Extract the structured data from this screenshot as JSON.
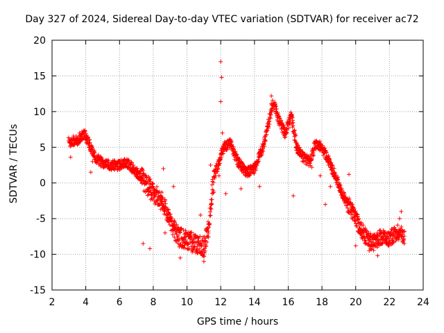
{
  "chart_data": {
    "type": "scatter",
    "title": "Day 327 of 2024, Sidereal Day-to-day VTEC variation (SDTVAR) for receiver ac72",
    "xlabel": "GPS time / hours",
    "ylabel": "SDTVAR / TECUs",
    "xlim": [
      2,
      24
    ],
    "ylim": [
      -15,
      20
    ],
    "xticks": [
      2,
      4,
      6,
      8,
      10,
      12,
      14,
      16,
      18,
      20,
      22,
      24
    ],
    "yticks": [
      -15,
      -10,
      -5,
      0,
      5,
      10,
      15,
      20
    ],
    "grid": true,
    "marker": "+",
    "color": "#ff0000",
    "series": [
      {
        "name": "SDTVAR",
        "trend": [
          [
            3.0,
            5.8
          ],
          [
            3.5,
            6.0
          ],
          [
            3.9,
            7.0
          ],
          [
            4.2,
            5.5
          ],
          [
            4.6,
            3.5
          ],
          [
            5.0,
            2.8
          ],
          [
            5.5,
            2.5
          ],
          [
            6.0,
            2.5
          ],
          [
            6.5,
            2.8
          ],
          [
            7.0,
            1.5
          ],
          [
            7.4,
            0.5
          ],
          [
            7.8,
            -0.8
          ],
          [
            8.2,
            -1.8
          ],
          [
            8.6,
            -3.0
          ],
          [
            9.0,
            -5.5
          ],
          [
            9.5,
            -7.5
          ],
          [
            10.0,
            -8.0
          ],
          [
            10.5,
            -8.5
          ],
          [
            11.0,
            -9.0
          ],
          [
            11.3,
            -6.0
          ],
          [
            11.6,
            1.0
          ],
          [
            11.9,
            3.0
          ],
          [
            12.2,
            5.0
          ],
          [
            12.6,
            5.5
          ],
          [
            13.0,
            3.0
          ],
          [
            13.5,
            1.5
          ],
          [
            14.0,
            2.0
          ],
          [
            14.5,
            5.0
          ],
          [
            14.8,
            8.0
          ],
          [
            15.1,
            11.5
          ],
          [
            15.4,
            9.0
          ],
          [
            15.8,
            7.0
          ],
          [
            16.2,
            9.5
          ],
          [
            16.5,
            5.0
          ],
          [
            16.9,
            3.5
          ],
          [
            17.3,
            3.0
          ],
          [
            17.6,
            5.5
          ],
          [
            18.0,
            5.0
          ],
          [
            18.4,
            3.0
          ],
          [
            18.8,
            1.0
          ],
          [
            19.3,
            -2.0
          ],
          [
            19.8,
            -4.0
          ],
          [
            20.2,
            -6.0
          ],
          [
            20.6,
            -7.5
          ],
          [
            21.0,
            -8.5
          ],
          [
            21.5,
            -7.5
          ],
          [
            22.0,
            -7.8
          ],
          [
            22.5,
            -6.8
          ],
          [
            22.9,
            -7.5
          ]
        ],
        "outliers": [
          [
            3.1,
            3.6
          ],
          [
            4.3,
            1.5
          ],
          [
            4.4,
            3.0
          ],
          [
            7.4,
            -8.5
          ],
          [
            7.8,
            -9.2
          ],
          [
            8.2,
            -2.5
          ],
          [
            8.6,
            2.0
          ],
          [
            8.7,
            -7.0
          ],
          [
            9.2,
            -0.5
          ],
          [
            9.6,
            -10.5
          ],
          [
            10.2,
            -7.0
          ],
          [
            10.8,
            -4.5
          ],
          [
            11.0,
            -11.0
          ],
          [
            11.4,
            2.5
          ],
          [
            11.5,
            -1.5
          ],
          [
            11.9,
            1.0
          ],
          [
            12.0,
            17.0
          ],
          [
            12.05,
            14.8
          ],
          [
            12.0,
            11.4
          ],
          [
            12.1,
            7.0
          ],
          [
            12.3,
            -1.5
          ],
          [
            13.2,
            -0.8
          ],
          [
            13.6,
            1.8
          ],
          [
            14.3,
            -0.5
          ],
          [
            15.0,
            12.2
          ],
          [
            16.3,
            -1.8
          ],
          [
            17.4,
            2.2
          ],
          [
            17.9,
            1.0
          ],
          [
            18.2,
            -3.0
          ],
          [
            18.5,
            -0.5
          ],
          [
            19.6,
            1.2
          ],
          [
            20.0,
            -8.8
          ],
          [
            20.8,
            -9.5
          ],
          [
            21.3,
            -10.2
          ],
          [
            22.6,
            -5.0
          ],
          [
            22.7,
            -4.0
          ]
        ]
      }
    ]
  }
}
